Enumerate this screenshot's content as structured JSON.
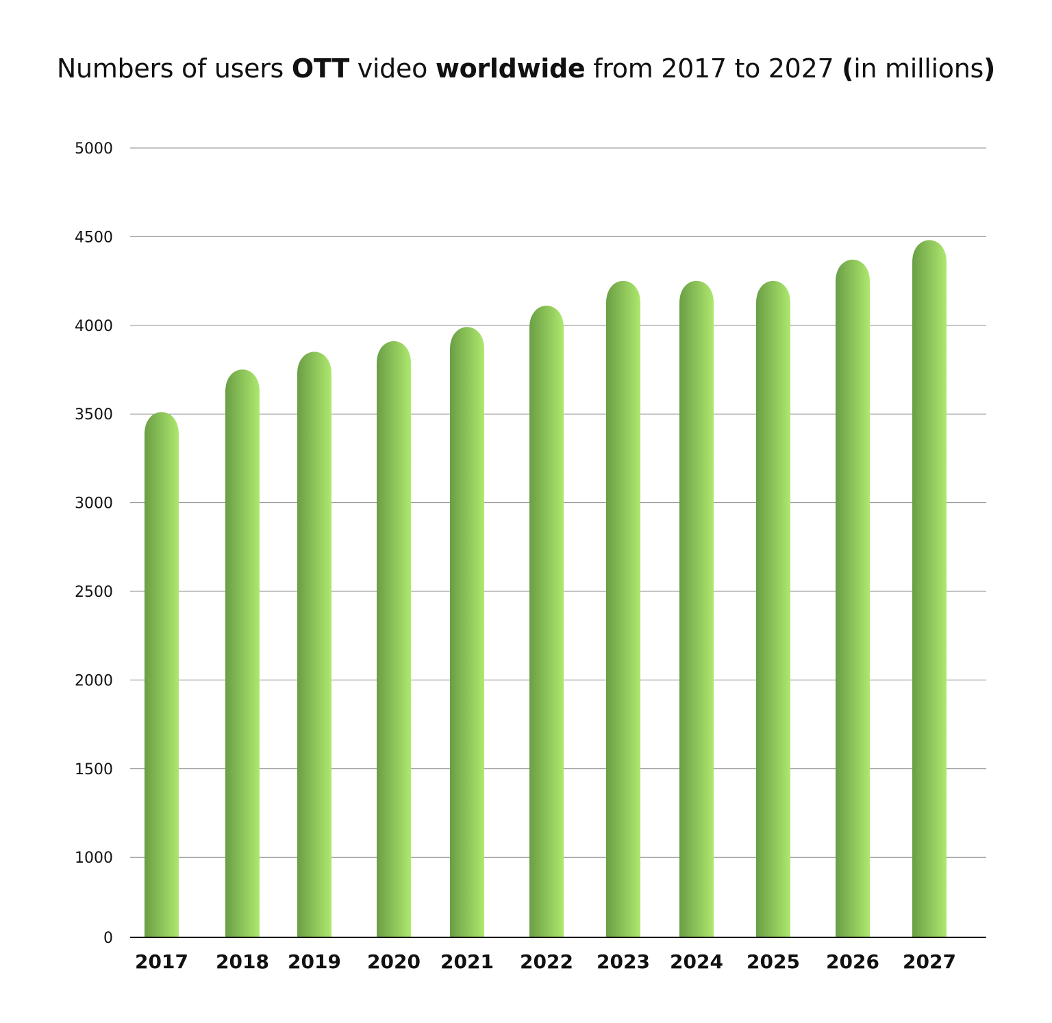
{
  "chart_data": {
    "type": "bar",
    "title_segments": [
      {
        "text": "Numbers of users ",
        "bold": false
      },
      {
        "text": "OTT",
        "bold": true
      },
      {
        "text": " video ",
        "bold": false
      },
      {
        "text": "worldwide",
        "bold": true
      },
      {
        "text": " from 2017 to 2027 ",
        "bold": false
      },
      {
        "text": "(",
        "bold": true
      },
      {
        "text": "in millions",
        "bold": false
      },
      {
        "text": ")",
        "bold": true
      }
    ],
    "title": "Numbers of users OTT video worldwide from 2017 to 2027 (in millions)",
    "xlabel": "",
    "ylabel": "",
    "categories": [
      "2017",
      "2018",
      "2019",
      "2020",
      "2021",
      "2022",
      "2023",
      "2024",
      "2025",
      "2026",
      "2027"
    ],
    "values": [
      3560,
      3800,
      3900,
      3960,
      4040,
      4160,
      4300,
      4300,
      4300,
      4420,
      4530
    ],
    "y_ticks": [
      0,
      1000,
      1500,
      2000,
      2500,
      3000,
      3500,
      4000,
      4500,
      5000
    ],
    "ylim": [
      0,
      5000
    ],
    "grid": true,
    "colors": {
      "bar_dark": "#6a9e45",
      "bar_light": "#aee86e",
      "grid": "#888888",
      "axis": "#000000"
    }
  }
}
